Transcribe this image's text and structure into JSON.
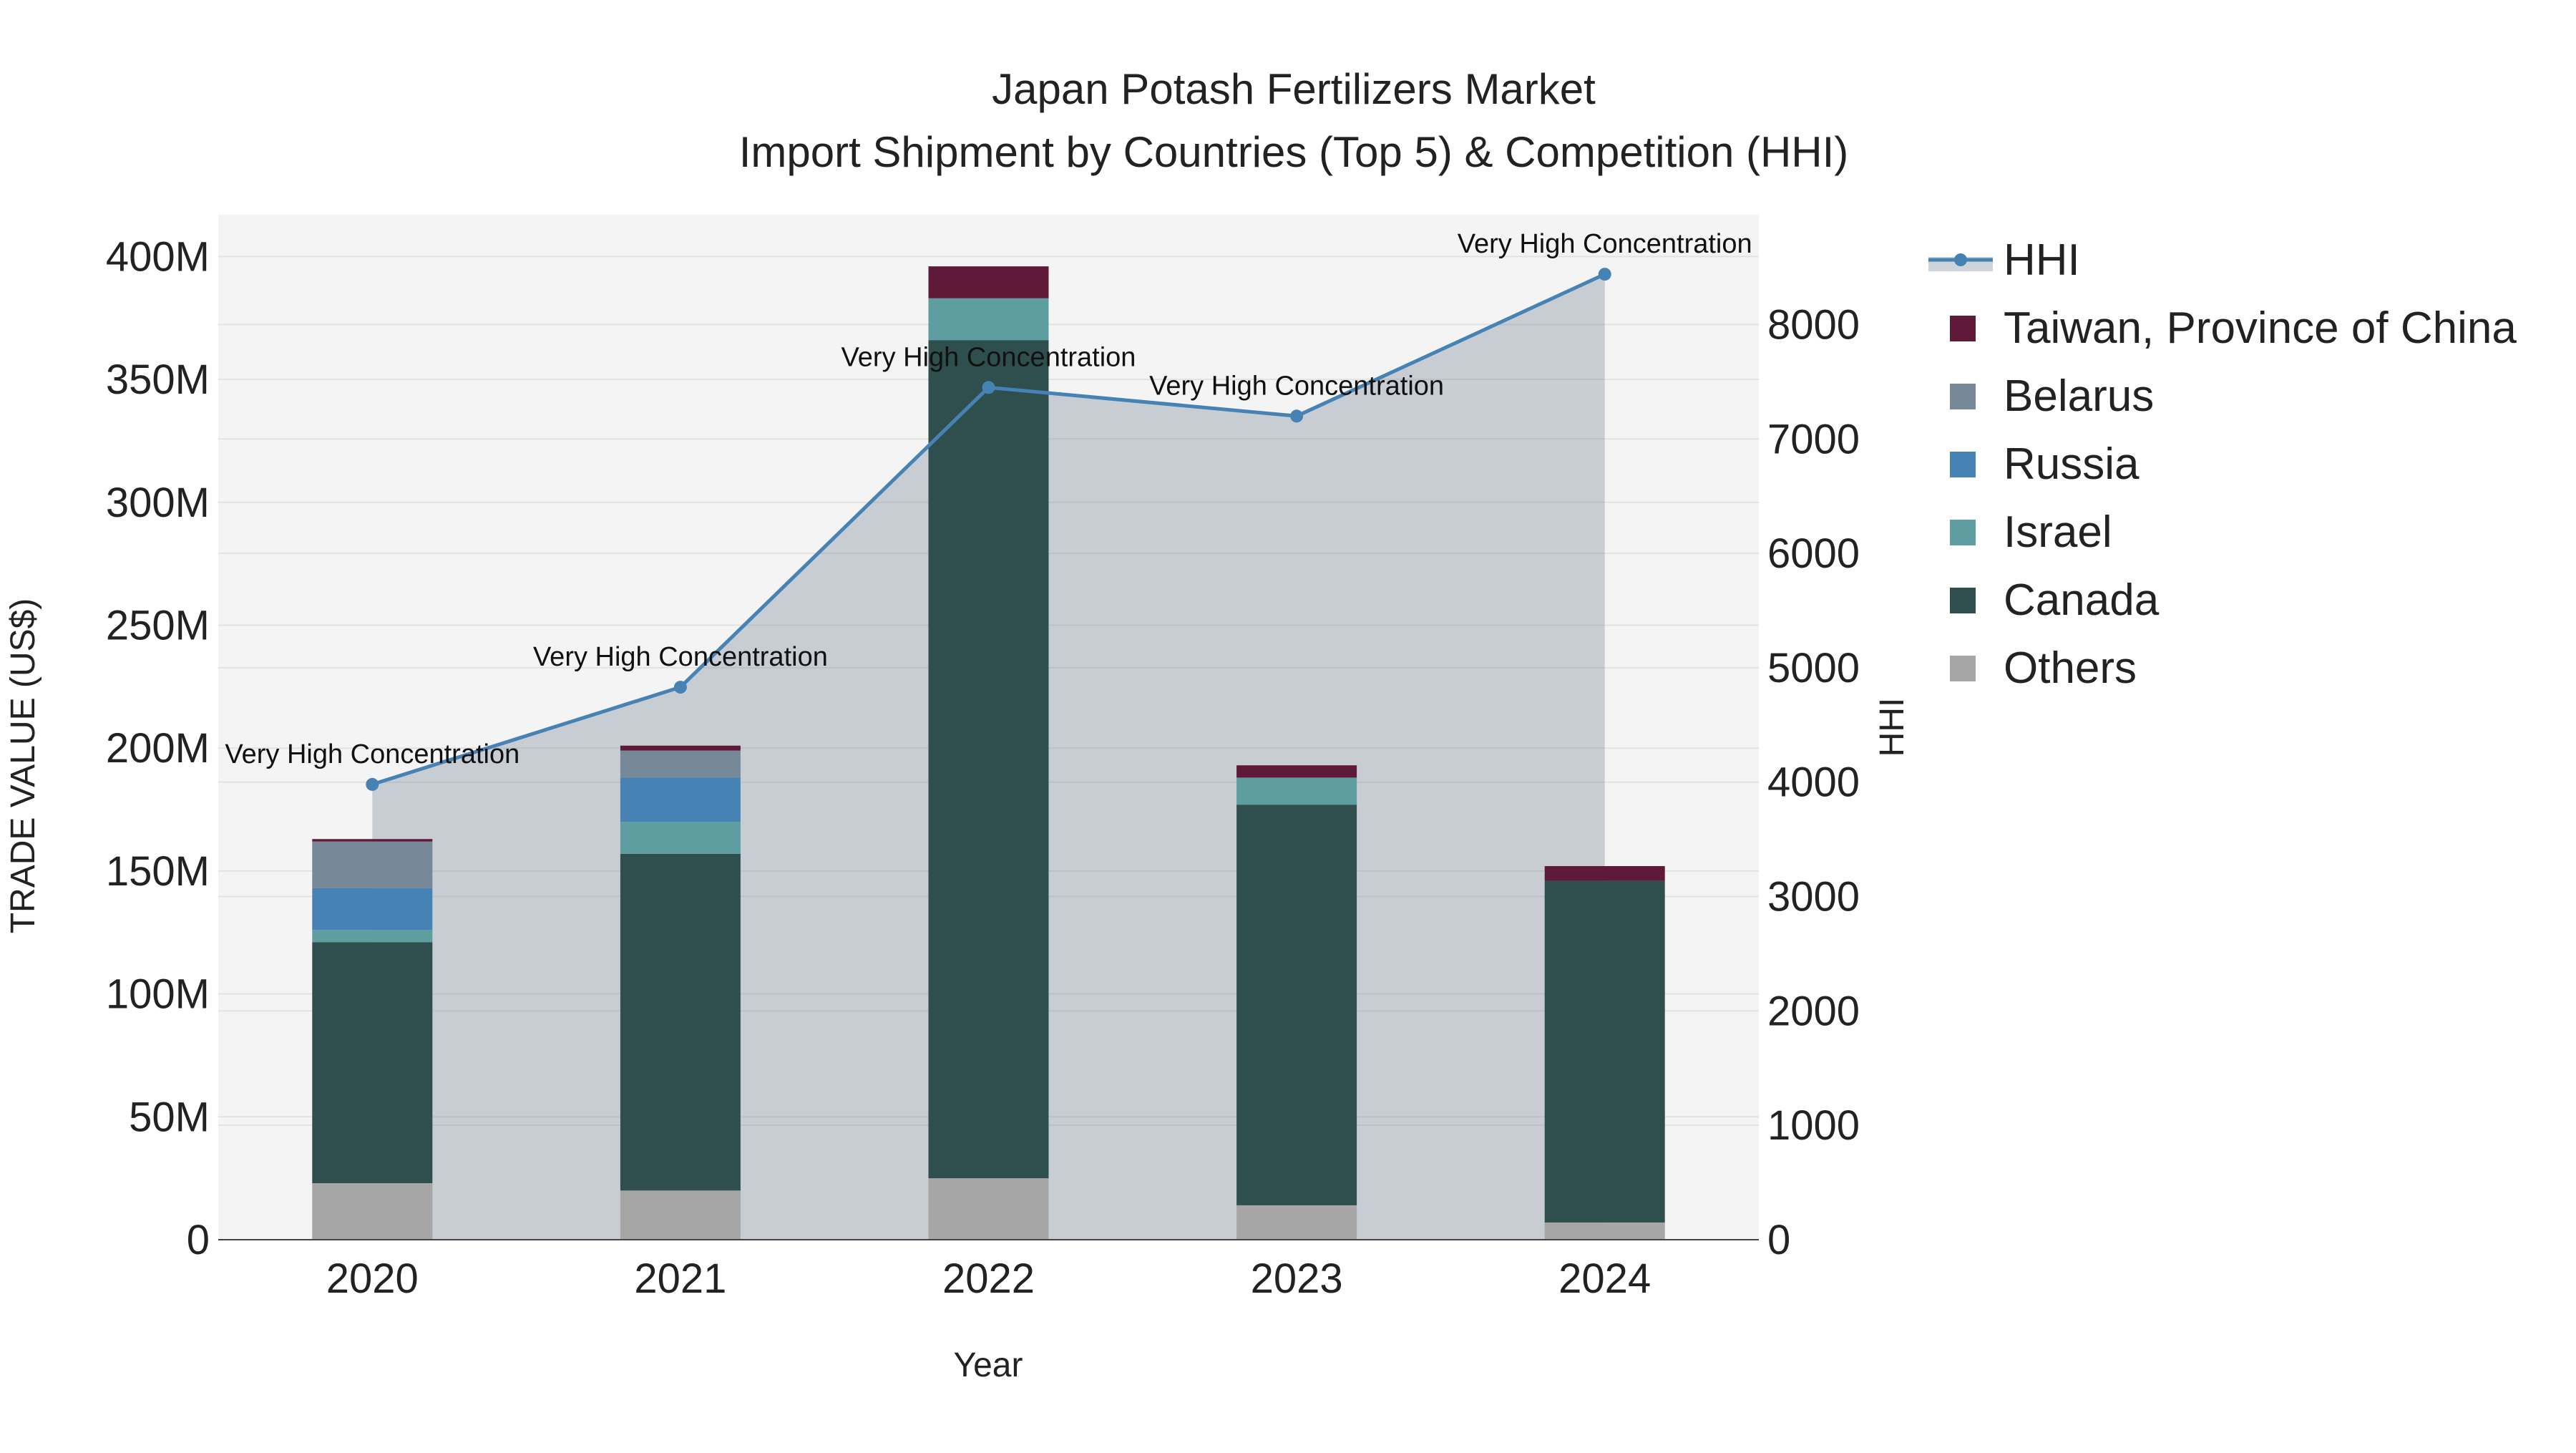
{
  "chart_data": {
    "type": "bar",
    "title": "Japan Potash Fertilizers Market",
    "subtitle": "Import Shipment by Countries (Top 5) & Competition (HHI)",
    "xlabel": "Year",
    "ylabel": "TRADE VALUE (US$)",
    "y2label": "HHI",
    "categories": [
      "2020",
      "2021",
      "2022",
      "2023",
      "2024"
    ],
    "ylim": [
      0,
      417
    ],
    "y2lim": [
      0,
      8960
    ],
    "yticks": [
      {
        "value": 0,
        "label": "0"
      },
      {
        "value": 50,
        "label": "50M"
      },
      {
        "value": 100,
        "label": "100M"
      },
      {
        "value": 150,
        "label": "150M"
      },
      {
        "value": 200,
        "label": "200M"
      },
      {
        "value": 250,
        "label": "250M"
      },
      {
        "value": 300,
        "label": "300M"
      },
      {
        "value": 350,
        "label": "350M"
      },
      {
        "value": 400,
        "label": "400M"
      }
    ],
    "y2ticks": [
      {
        "value": 0,
        "label": "0"
      },
      {
        "value": 1000,
        "label": "1000"
      },
      {
        "value": 2000,
        "label": "2000"
      },
      {
        "value": 3000,
        "label": "3000"
      },
      {
        "value": 4000,
        "label": "4000"
      },
      {
        "value": 5000,
        "label": "5000"
      },
      {
        "value": 6000,
        "label": "6000"
      },
      {
        "value": 7000,
        "label": "7000"
      },
      {
        "value": 8000,
        "label": "8000"
      }
    ],
    "series": [
      {
        "name": "Others",
        "color": "#a6a6a6",
        "values": [
          23,
          20,
          25,
          14,
          7
        ]
      },
      {
        "name": "Canada",
        "color": "#2f4f4f",
        "values": [
          98,
          137,
          341,
          163,
          139
        ]
      },
      {
        "name": "Israel",
        "color": "#5f9ea0",
        "values": [
          5,
          13,
          17,
          11,
          0
        ]
      },
      {
        "name": "Russia",
        "color": "#4682b4",
        "values": [
          17,
          18,
          0,
          0,
          0
        ]
      },
      {
        "name": "Belarus",
        "color": "#778899",
        "values": [
          19,
          11,
          0,
          0,
          0
        ]
      },
      {
        "name": "Taiwan, Province of China",
        "color": "#5e1a38",
        "values": [
          1,
          2,
          13,
          5,
          6
        ]
      }
    ],
    "hhi": {
      "name": "HHI",
      "color": "#4682b4",
      "values": [
        3980,
        4830,
        7450,
        7200,
        8440
      ],
      "labels": [
        "Very High Concentration",
        "Very High Concentration",
        "Very High Concentration",
        "Very High Concentration",
        "Very High Concentration"
      ]
    },
    "legend_placement": "right",
    "grid": true
  }
}
